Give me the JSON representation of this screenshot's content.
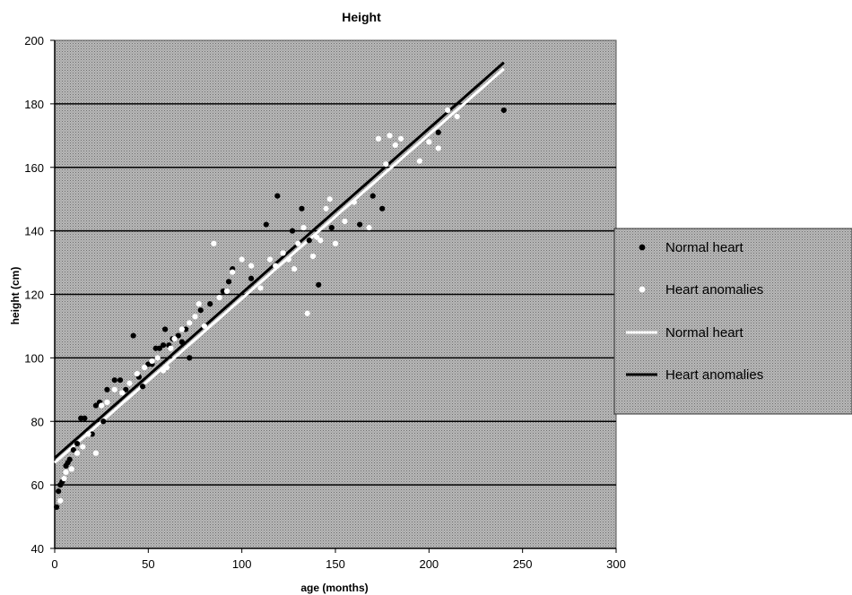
{
  "chart_data": {
    "type": "scatter",
    "title": "Height",
    "xlabel": "age (months)",
    "ylabel": "height (cm)",
    "xlim": [
      0,
      300
    ],
    "ylim": [
      40,
      200
    ],
    "xticks": [
      "0",
      "50",
      "100",
      "150",
      "200",
      "250",
      "300"
    ],
    "yticks": [
      "40",
      "60",
      "80",
      "100",
      "120",
      "140",
      "160",
      "180",
      "200"
    ],
    "grid": true,
    "legend_position": "right",
    "colors": {
      "plot_bg": "#9a9a9a",
      "normal": "#ffffff",
      "anomalies": "#000000",
      "gridline": "#000000"
    },
    "series": [
      {
        "name": "Normal heart",
        "kind": "scatter",
        "marker_color": "#000000",
        "points": [
          [
            1,
            53
          ],
          [
            2,
            58
          ],
          [
            3,
            60
          ],
          [
            4,
            61
          ],
          [
            6,
            66
          ],
          [
            7,
            67
          ],
          [
            8,
            68
          ],
          [
            10,
            71
          ],
          [
            12,
            73
          ],
          [
            14,
            81
          ],
          [
            16,
            81
          ],
          [
            20,
            76
          ],
          [
            22,
            85
          ],
          [
            24,
            86
          ],
          [
            26,
            80
          ],
          [
            28,
            90
          ],
          [
            32,
            93
          ],
          [
            35,
            93
          ],
          [
            38,
            90
          ],
          [
            42,
            107
          ],
          [
            45,
            94
          ],
          [
            47,
            91
          ],
          [
            50,
            98
          ],
          [
            52,
            98
          ],
          [
            54,
            103
          ],
          [
            56,
            103
          ],
          [
            58,
            104
          ],
          [
            59,
            109
          ],
          [
            61,
            104
          ],
          [
            63,
            106
          ],
          [
            66,
            107
          ],
          [
            68,
            105
          ],
          [
            70,
            109
          ],
          [
            72,
            100
          ],
          [
            78,
            115
          ],
          [
            83,
            117
          ],
          [
            90,
            121
          ],
          [
            93,
            124
          ],
          [
            95,
            128
          ],
          [
            105,
            125
          ],
          [
            113,
            142
          ],
          [
            119,
            151
          ],
          [
            127,
            140
          ],
          [
            132,
            147
          ],
          [
            136,
            137
          ],
          [
            141,
            123
          ],
          [
            148,
            141
          ],
          [
            163,
            142
          ],
          [
            170,
            151
          ],
          [
            175,
            147
          ],
          [
            205,
            171
          ],
          [
            240,
            178
          ]
        ]
      },
      {
        "name": "Heart anomalies",
        "kind": "scatter",
        "marker_color": "#ffffff",
        "points": [
          [
            3,
            55
          ],
          [
            5,
            62
          ],
          [
            6,
            64
          ],
          [
            9,
            65
          ],
          [
            12,
            70
          ],
          [
            15,
            72
          ],
          [
            18,
            76
          ],
          [
            22,
            70
          ],
          [
            25,
            85
          ],
          [
            28,
            86
          ],
          [
            32,
            90
          ],
          [
            36,
            89
          ],
          [
            40,
            92
          ],
          [
            44,
            95
          ],
          [
            48,
            97
          ],
          [
            52,
            99
          ],
          [
            55,
            100
          ],
          [
            58,
            96
          ],
          [
            60,
            97
          ],
          [
            62,
            103
          ],
          [
            64,
            106
          ],
          [
            68,
            109
          ],
          [
            72,
            111
          ],
          [
            75,
            113
          ],
          [
            77,
            117
          ],
          [
            80,
            110
          ],
          [
            85,
            136
          ],
          [
            88,
            119
          ],
          [
            92,
            121
          ],
          [
            95,
            127
          ],
          [
            100,
            131
          ],
          [
            105,
            129
          ],
          [
            110,
            122
          ],
          [
            115,
            131
          ],
          [
            118,
            129
          ],
          [
            122,
            133
          ],
          [
            125,
            131
          ],
          [
            128,
            128
          ],
          [
            130,
            136
          ],
          [
            133,
            141
          ],
          [
            135,
            114
          ],
          [
            138,
            132
          ],
          [
            140,
            138
          ],
          [
            142,
            137
          ],
          [
            145,
            147
          ],
          [
            147,
            150
          ],
          [
            150,
            136
          ],
          [
            155,
            143
          ],
          [
            160,
            149
          ],
          [
            168,
            141
          ],
          [
            173,
            169
          ],
          [
            177,
            161
          ],
          [
            179,
            170
          ],
          [
            182,
            167
          ],
          [
            185,
            169
          ],
          [
            195,
            162
          ],
          [
            200,
            168
          ],
          [
            205,
            166
          ],
          [
            210,
            178
          ],
          [
            215,
            176
          ]
        ]
      },
      {
        "name": "Normal heart",
        "kind": "line",
        "line_color": "#ffffff",
        "line": [
          [
            0,
            67
          ],
          [
            240,
            191
          ]
        ]
      },
      {
        "name": "Heart anomalies",
        "kind": "line",
        "line_color": "#000000",
        "line": [
          [
            0,
            68.5
          ],
          [
            240,
            193
          ]
        ]
      }
    ],
    "legend": [
      {
        "label": "Normal heart",
        "symbol": "dot-black"
      },
      {
        "label": "Heart anomalies",
        "symbol": "dot-white"
      },
      {
        "label": "Normal heart",
        "symbol": "line-white"
      },
      {
        "label": "Heart anomalies",
        "symbol": "line-black"
      }
    ]
  }
}
